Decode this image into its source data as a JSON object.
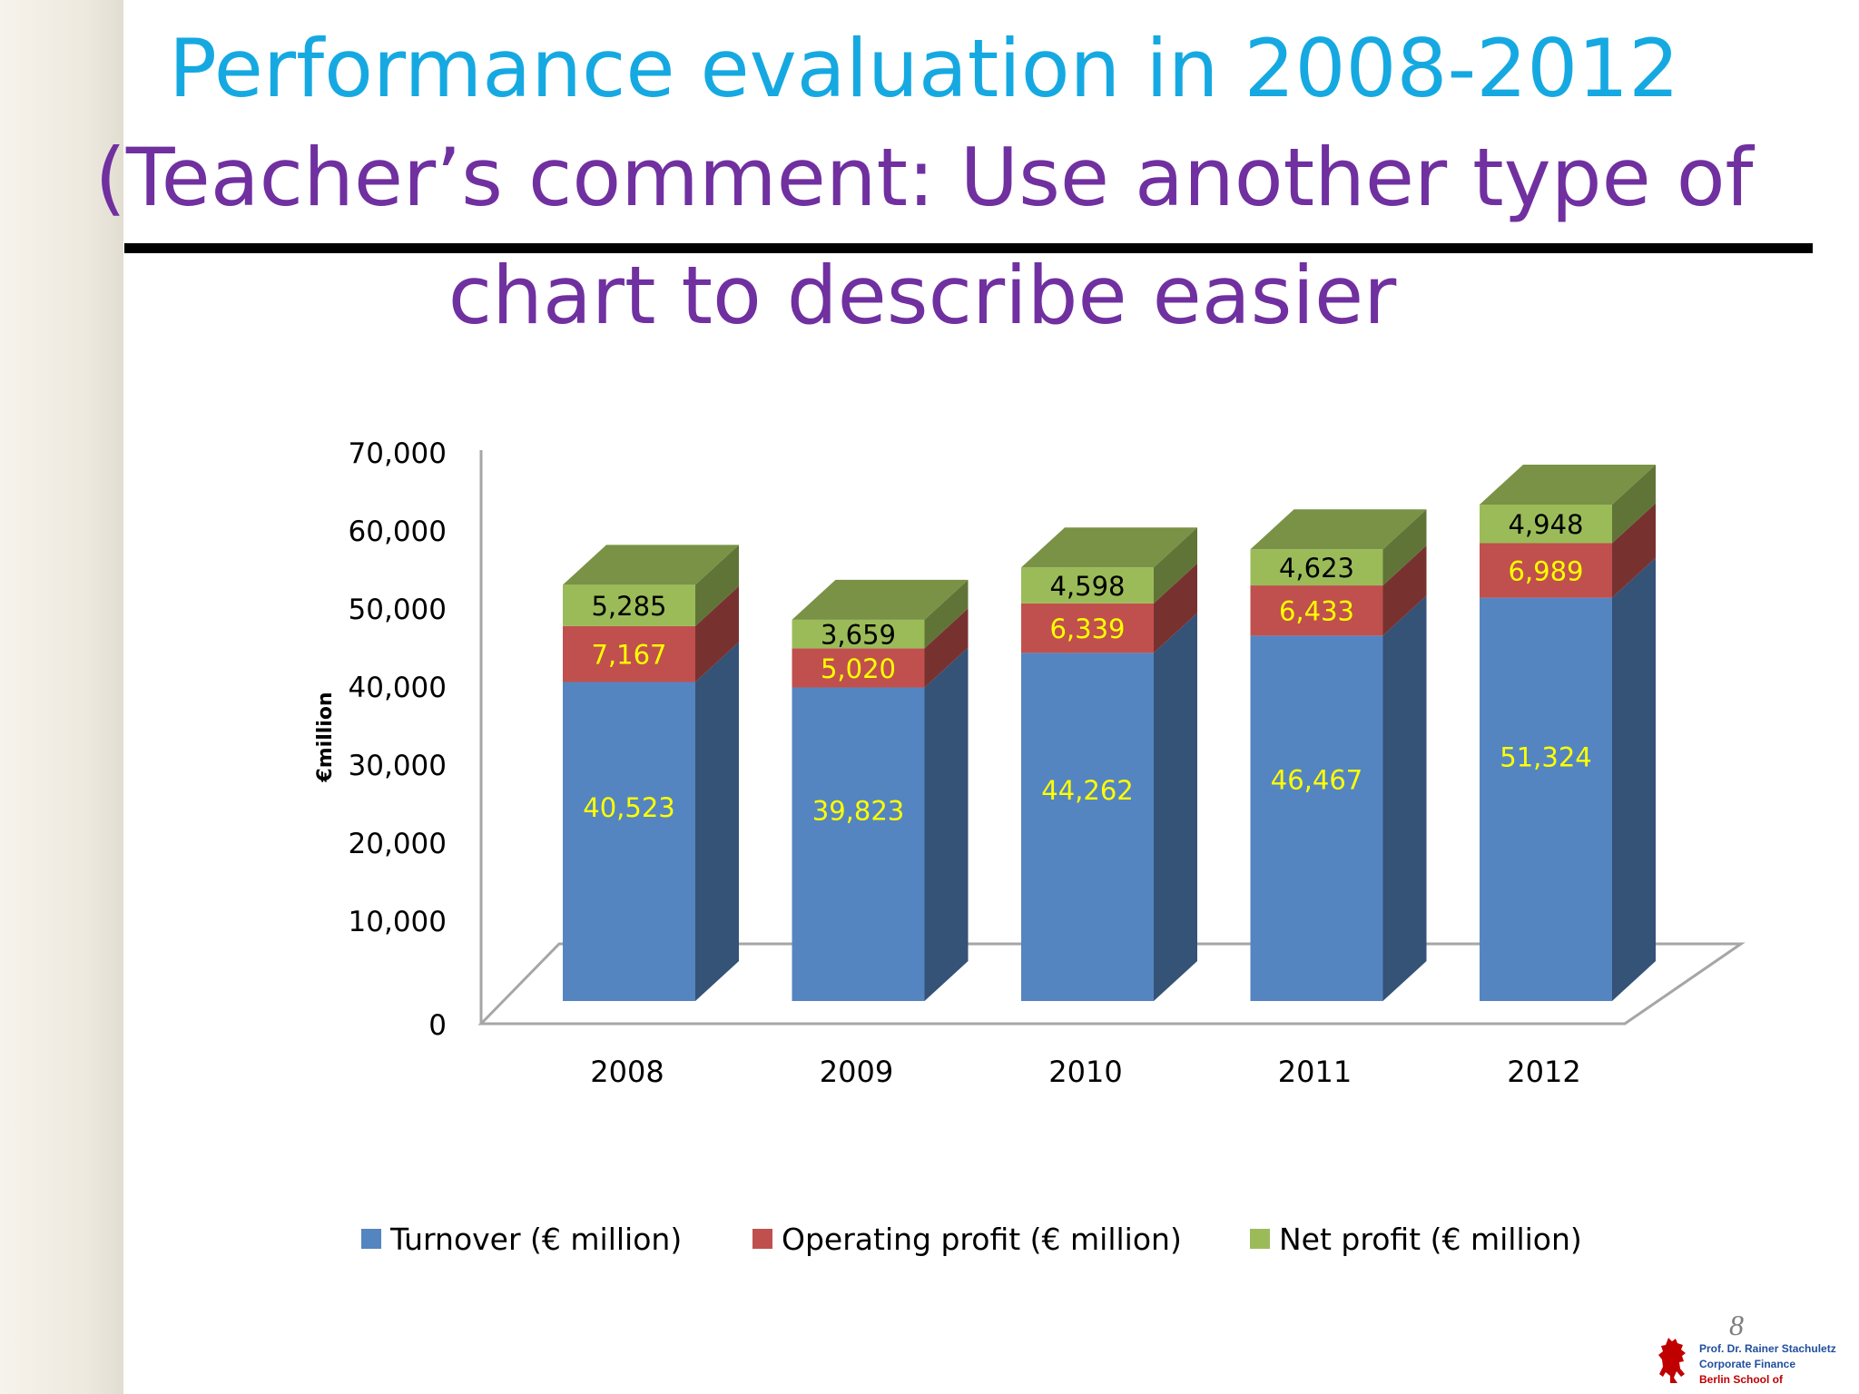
{
  "slide": {
    "title_line_1": "Performance evaluation in 2008-2012",
    "title_line_2": "(Teacher’s comment: Use another type of",
    "title_line_3": "chart to describe easier",
    "page_number": "8",
    "footer": {
      "line_1": "Prof. Dr. Rainer Stachuletz",
      "line_2": "Corporate Finance",
      "line_3": "Berlin School of"
    }
  },
  "colors": {
    "title_blue": "#16a9e1",
    "title_purple": "#7030a0",
    "turnover": "#5585c0",
    "operating_profit": "#c0504d",
    "net_profit": "#9bbb59",
    "label_yellow": "#ffff00",
    "footer_blue": "#1f4e9c",
    "footer_red": "#c00000"
  },
  "chart_data": {
    "type": "bar",
    "stacked": true,
    "three_d": true,
    "categories": [
      "2008",
      "2009",
      "2010",
      "2011",
      "2012"
    ],
    "series": [
      {
        "name": "Turnover (€ million)",
        "values": [
          40523,
          39823,
          44262,
          46467,
          51324
        ],
        "labels": [
          "40,523",
          "39,823",
          "44,262",
          "46,467",
          "51,324"
        ]
      },
      {
        "name": "Operating profit (€ million)",
        "values": [
          7167,
          5020,
          6339,
          6433,
          6989
        ],
        "labels": [
          "7,167",
          "5,020",
          "6,339",
          "6,433",
          "6,989"
        ]
      },
      {
        "name": "Net profit (€ million)",
        "values": [
          5285,
          3659,
          4598,
          4623,
          4948
        ],
        "labels": [
          "5,285",
          "3,659",
          "4,598",
          "4,623",
          "4,948"
        ]
      }
    ],
    "ylabel": "€million",
    "xlabel": "",
    "ylim": [
      0,
      70000
    ],
    "y_ticks": [
      "0",
      "10,000",
      "20,000",
      "30,000",
      "40,000",
      "50,000",
      "60,000",
      "70,000"
    ],
    "legend_position": "bottom",
    "grid": false
  }
}
